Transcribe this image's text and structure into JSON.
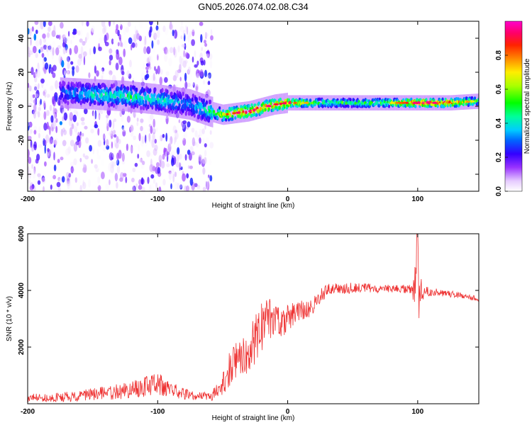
{
  "title": "GN05.2026.074.02.08.C34",
  "chart_data": [
    {
      "type": "heatmap",
      "title": "GN05.2026.074.02.08.C34",
      "xlabel": "Height of straight line (km)",
      "ylabel": "Frequency (Hz)",
      "xlim": [
        -200,
        147
      ],
      "ylim": [
        -50,
        50
      ],
      "xticks": [
        -200,
        -100,
        0,
        100
      ],
      "yticks": [
        -40,
        -20,
        0,
        20,
        40
      ],
      "colorbar": {
        "label": "Normalized spectral amplitude",
        "range": [
          0,
          1
        ],
        "ticks": [
          0.0,
          0.2,
          0.4,
          0.6,
          0.8
        ],
        "colormap": "rainbow (white-violet-blue-cyan-green-yellow-orange-red-magenta)"
      },
      "ridge": {
        "description": "Dominant frequency band vs height",
        "x": [
          -175,
          -150,
          -125,
          -100,
          -75,
          -60,
          -50,
          -40,
          -30,
          -20,
          -10,
          0,
          25,
          50,
          75,
          100,
          125,
          147
        ],
        "y": [
          8,
          7,
          6,
          4,
          1,
          -3,
          -5,
          -4,
          -3,
          -1,
          1,
          2,
          2,
          2,
          2,
          2,
          2,
          3
        ],
        "peak_amplitude": [
          0.3,
          0.45,
          0.5,
          0.45,
          0.35,
          0.5,
          0.7,
          0.85,
          0.9,
          0.9,
          0.85,
          0.9,
          0.55,
          0.55,
          0.6,
          0.95,
          0.9,
          0.55
        ]
      },
      "noise_region": {
        "x": [
          -200,
          -58
        ],
        "description": "Scattered low-amplitude speckle across all frequencies"
      }
    },
    {
      "type": "line",
      "xlabel": "Height of straight line (km)",
      "ylabel": "SNR (10 * v/v)",
      "xlim": [
        -200,
        147
      ],
      "ylim": [
        0,
        6000
      ],
      "xticks": [
        -200,
        -100,
        0,
        100
      ],
      "yticks": [
        2000,
        4000,
        6000
      ],
      "series": [
        {
          "name": "SNR",
          "color": "#ee3333",
          "x": [
            -200,
            -180,
            -160,
            -140,
            -120,
            -110,
            -100,
            -90,
            -80,
            -70,
            -60,
            -55,
            -50,
            -45,
            -40,
            -35,
            -30,
            -25,
            -20,
            -15,
            -10,
            -5,
            0,
            5,
            10,
            15,
            20,
            25,
            30,
            40,
            50,
            60,
            70,
            80,
            90,
            95,
            98,
            100,
            102,
            105,
            110,
            120,
            130,
            140,
            147
          ],
          "y": [
            200,
            220,
            280,
            380,
            480,
            600,
            700,
            500,
            350,
            280,
            250,
            350,
            800,
            1200,
            1500,
            1700,
            1900,
            2300,
            2700,
            2900,
            3000,
            2900,
            3000,
            3200,
            3300,
            3300,
            3500,
            3800,
            4000,
            4050,
            4100,
            4100,
            4050,
            4050,
            4050,
            4100,
            4200,
            4300,
            3900,
            4000,
            3950,
            3900,
            3850,
            3750,
            3700
          ],
          "noise_amplitude": [
            150,
            150,
            200,
            250,
            300,
            350,
            400,
            300,
            200,
            150,
            150,
            300,
            500,
            600,
            700,
            800,
            900,
            900,
            900,
            800,
            700,
            600,
            500,
            400,
            350,
            300,
            300,
            250,
            250,
            200,
            200,
            150,
            150,
            150,
            150,
            200,
            800,
            1800,
            600,
            200,
            150,
            120,
            120,
            100,
            100
          ]
        }
      ]
    }
  ]
}
